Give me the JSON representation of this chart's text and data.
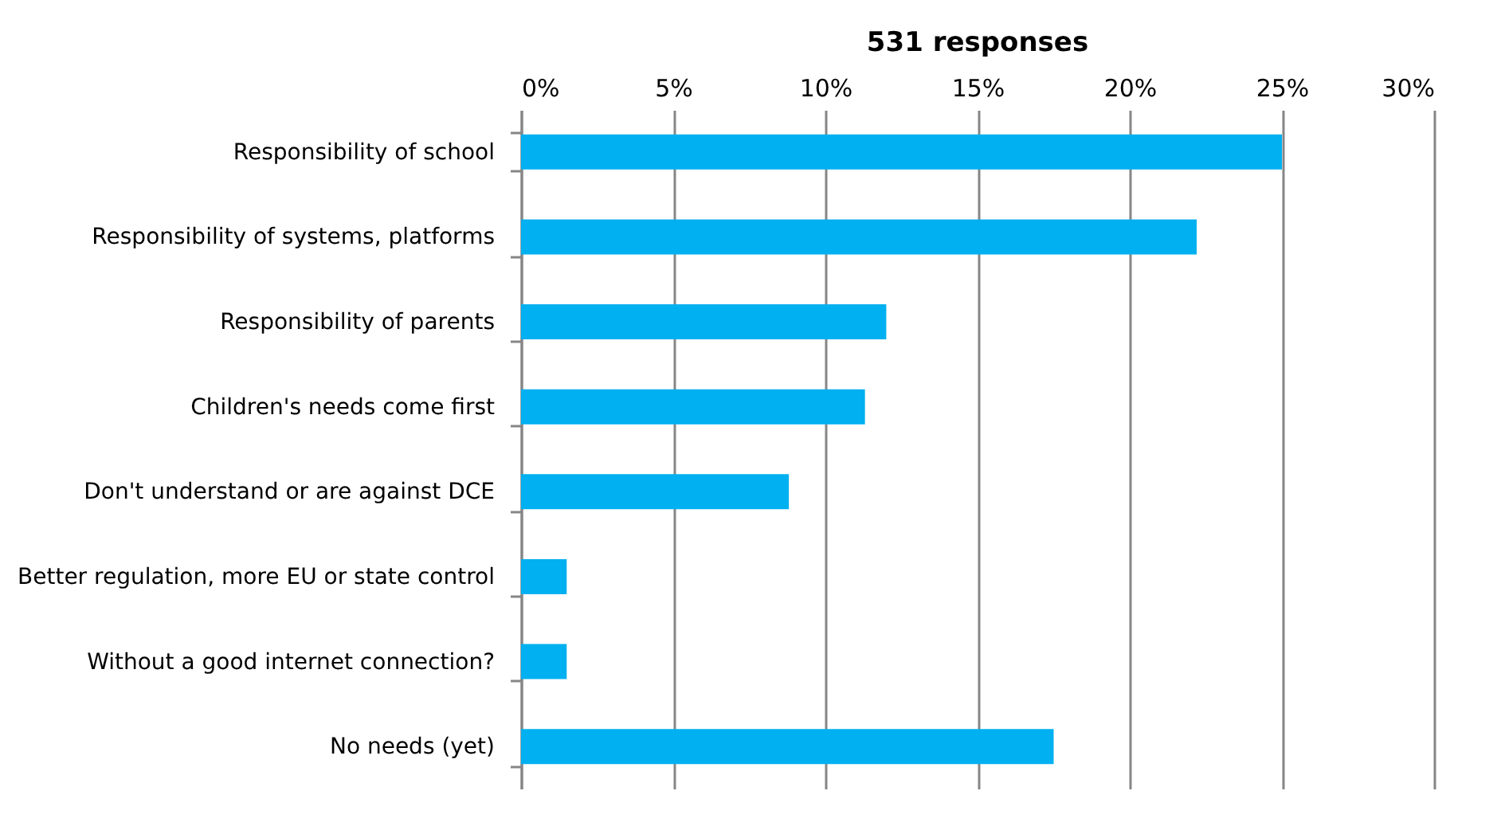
{
  "chart_data": {
    "type": "bar",
    "orientation": "horizontal",
    "title": "531 responses",
    "categories": [
      "Responsibility of school",
      "Responsibility of systems, platforms",
      "Responsibility of parents",
      "Children's needs come first",
      "Don't understand or are against DCE",
      "Better regulation, more EU or state control",
      "Without a good internet connection?",
      "No needs (yet)"
    ],
    "values": [
      25.0,
      22.2,
      12.0,
      11.3,
      8.8,
      1.5,
      1.5,
      17.5
    ],
    "color": "#00b0f0",
    "xlim": [
      0,
      30
    ],
    "xticks": [
      {
        "value": 0,
        "label": "0%"
      },
      {
        "value": 5,
        "label": "5%"
      },
      {
        "value": 10,
        "label": "10%"
      },
      {
        "value": 15,
        "label": "15%"
      },
      {
        "value": 20,
        "label": "20%"
      },
      {
        "value": 25,
        "label": "25%"
      },
      {
        "value": 30,
        "label": "30%"
      }
    ],
    "grid": "x"
  }
}
